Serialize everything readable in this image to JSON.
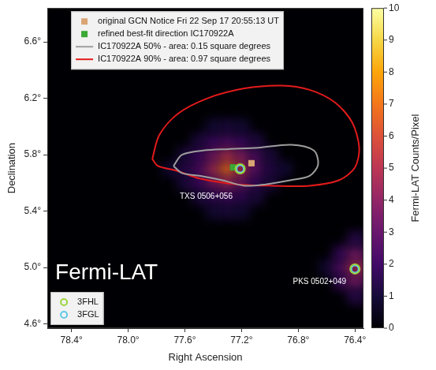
{
  "chart_data": {
    "type": "heatmap",
    "x_label": "Right Ascension",
    "y_label": "Declination",
    "label": "Fermi-LAT",
    "xlim": [
      78.57,
      76.34
    ],
    "ylim": [
      4.57,
      6.84
    ],
    "xticks": [
      {
        "value": 78.4,
        "label": "78.4°"
      },
      {
        "value": 78.0,
        "label": "78.0°"
      },
      {
        "value": 77.6,
        "label": "77.6°"
      },
      {
        "value": 77.2,
        "label": "77.2°"
      },
      {
        "value": 76.8,
        "label": "76.8°"
      },
      {
        "value": 76.4,
        "label": "76.4°"
      }
    ],
    "yticks": [
      {
        "value": 4.6,
        "label": "4.6°"
      },
      {
        "value": 5.0,
        "label": "5.0°"
      },
      {
        "value": 5.4,
        "label": "5.4°"
      },
      {
        "value": 5.8,
        "label": "5.8°"
      },
      {
        "value": 6.2,
        "label": "6.2°"
      },
      {
        "value": 6.6,
        "label": "6.6°"
      }
    ],
    "grid": false,
    "colorbar": {
      "label": "Fermi-LAT Counts/Pixel",
      "range": [
        0,
        10
      ],
      "ticks": [
        0,
        1,
        2,
        3,
        4,
        5,
        6,
        7,
        8,
        9,
        10
      ]
    },
    "cells": [
      [
        77.7,
        5.7,
        1
      ],
      [
        77.6,
        5.7,
        1.5
      ],
      [
        77.5,
        5.7,
        2.5
      ],
      [
        77.4,
        5.7,
        4.5
      ],
      [
        77.3,
        5.7,
        7
      ],
      [
        77.2,
        5.7,
        5
      ],
      [
        77.1,
        5.7,
        3
      ],
      [
        77.0,
        5.7,
        1.5
      ],
      [
        76.9,
        5.7,
        1
      ],
      [
        77.6,
        5.8,
        1.2
      ],
      [
        77.5,
        5.8,
        2
      ],
      [
        77.4,
        5.8,
        3.5
      ],
      [
        77.3,
        5.8,
        5
      ],
      [
        77.2,
        5.8,
        4
      ],
      [
        77.1,
        5.8,
        2.5
      ],
      [
        77.0,
        5.8,
        1.2
      ],
      [
        77.6,
        5.6,
        1.2
      ],
      [
        77.5,
        5.6,
        2
      ],
      [
        77.4,
        5.6,
        3.5
      ],
      [
        77.3,
        5.6,
        4.5
      ],
      [
        77.2,
        5.6,
        3.5
      ],
      [
        77.1,
        5.6,
        2
      ],
      [
        77.0,
        5.6,
        1.2
      ],
      [
        77.5,
        5.9,
        1.2
      ],
      [
        77.4,
        5.9,
        2
      ],
      [
        77.3,
        5.9,
        2.5
      ],
      [
        77.2,
        5.9,
        2
      ],
      [
        77.1,
        5.9,
        1.3
      ],
      [
        77.5,
        5.5,
        1.2
      ],
      [
        77.4,
        5.5,
        1.8
      ],
      [
        77.3,
        5.5,
        2.2
      ],
      [
        77.2,
        5.5,
        1.8
      ],
      [
        77.1,
        5.5,
        1.2
      ],
      [
        77.4,
        6.0,
        1
      ],
      [
        77.3,
        6.0,
        1.2
      ],
      [
        77.2,
        6.0,
        1
      ],
      [
        77.4,
        5.4,
        1
      ],
      [
        77.3,
        5.4,
        1.2
      ],
      [
        77.2,
        5.4,
        1
      ],
      [
        76.6,
        5.0,
        1
      ],
      [
        76.5,
        5.0,
        2.5
      ],
      [
        76.4,
        5.0,
        5
      ],
      [
        76.3,
        5.0,
        4.5
      ],
      [
        76.5,
        4.9,
        1.8
      ],
      [
        76.4,
        4.9,
        3.5
      ],
      [
        76.3,
        4.9,
        3
      ],
      [
        76.5,
        5.1,
        1.8
      ],
      [
        76.4,
        5.1,
        3.5
      ],
      [
        76.3,
        5.1,
        3
      ],
      [
        76.4,
        4.8,
        1.5
      ],
      [
        76.3,
        4.8,
        1.2
      ],
      [
        76.4,
        5.2,
        1.5
      ],
      [
        76.3,
        5.2,
        1.2
      ]
    ],
    "legend": "top",
    "series": [
      {
        "name": "original GCN Notice Fri 22 Sep 17 20:55:13 UT",
        "type": "scatter",
        "marker": "square",
        "color": "#d9a574",
        "values": [
          [
            77.13,
            5.74
          ]
        ]
      },
      {
        "name": "refined best-fit direction IC170922A",
        "type": "scatter",
        "marker": "square",
        "color": "#3aa935",
        "values": [
          [
            77.26,
            5.71
          ]
        ]
      },
      {
        "name": "IC170922A 50% - area: 0.15 square degrees",
        "type": "line",
        "line_style": "solid",
        "color": "#9e9e9e",
        "values": [
          [
            77.68,
            5.72
          ],
          [
            77.62,
            5.8
          ],
          [
            77.47,
            5.83
          ],
          [
            77.29,
            5.84
          ],
          [
            77.08,
            5.85
          ],
          [
            76.85,
            5.87
          ],
          [
            76.69,
            5.83
          ],
          [
            76.66,
            5.73
          ],
          [
            76.72,
            5.65
          ],
          [
            76.85,
            5.62
          ],
          [
            77.03,
            5.59
          ],
          [
            77.18,
            5.58
          ],
          [
            77.34,
            5.62
          ],
          [
            77.49,
            5.65
          ],
          [
            77.62,
            5.67
          ]
        ]
      },
      {
        "name": "IC170922A 90% - area: 0.97 square degrees",
        "type": "line",
        "line_style": "solid",
        "color": "#e31a1c",
        "values": [
          [
            77.83,
            5.77
          ],
          [
            77.78,
            5.94
          ],
          [
            77.65,
            6.09
          ],
          [
            77.44,
            6.2
          ],
          [
            77.18,
            6.27
          ],
          [
            76.92,
            6.29
          ],
          [
            76.72,
            6.26
          ],
          [
            76.54,
            6.17
          ],
          [
            76.42,
            6.03
          ],
          [
            76.37,
            5.85
          ],
          [
            76.4,
            5.71
          ],
          [
            76.51,
            5.62
          ],
          [
            76.72,
            5.58
          ],
          [
            76.98,
            5.58
          ],
          [
            77.23,
            5.59
          ],
          [
            77.49,
            5.63
          ],
          [
            77.67,
            5.69
          ],
          [
            77.79,
            5.72
          ]
        ]
      }
    ],
    "catalogs": {
      "legend": "bottom",
      "series": [
        {
          "name": "3FHL",
          "type": "scatter",
          "marker": "circle",
          "color": "#9bd53a",
          "values": [
            [
              77.21,
              5.7
            ],
            [
              76.4,
              4.99
            ]
          ]
        },
        {
          "name": "3FGL",
          "type": "scatter",
          "marker": "circle",
          "color": "#5ec8e8",
          "values": [
            [
              77.21,
              5.7
            ],
            [
              76.4,
              4.99
            ]
          ]
        }
      ]
    },
    "annotations": [
      {
        "text": "TXS 0506+056",
        "x": 77.45,
        "y": 5.5
      },
      {
        "text": "PKS 0502+049",
        "x": 76.65,
        "y": 4.9
      }
    ]
  }
}
